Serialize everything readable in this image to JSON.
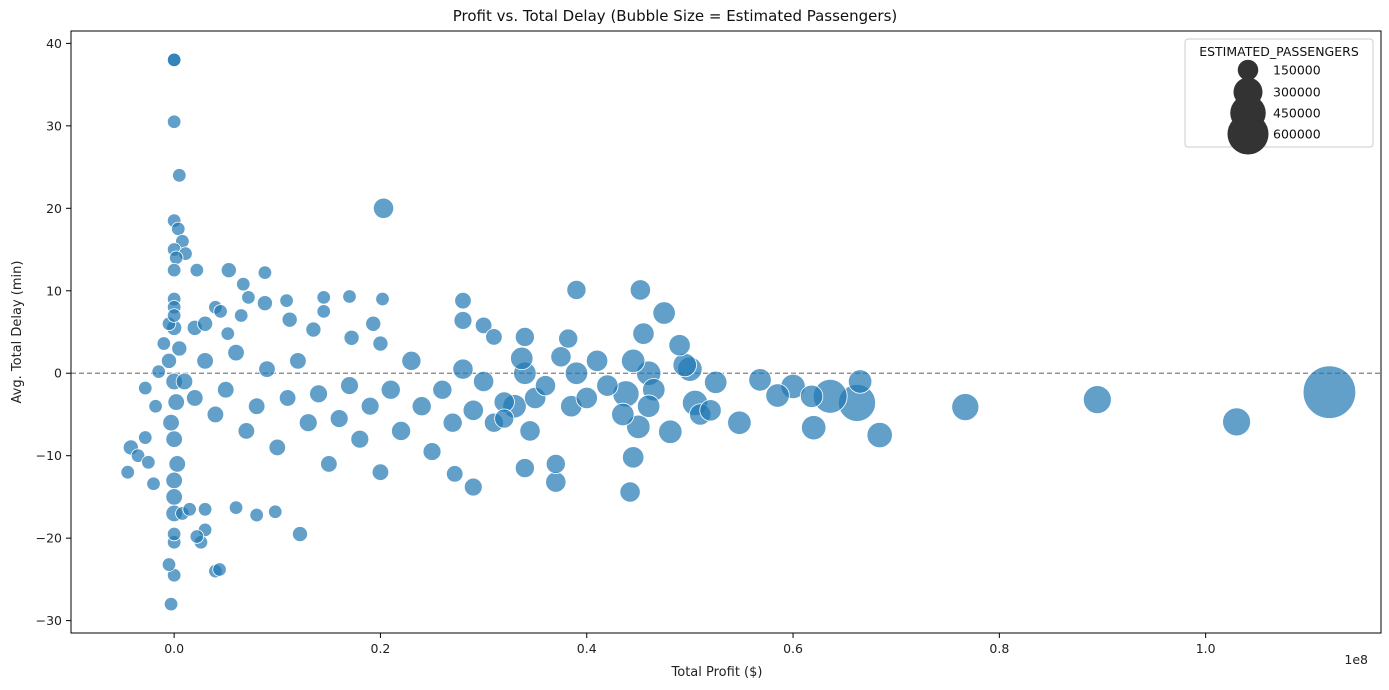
{
  "chart_data": {
    "type": "scatter",
    "title": "Profit vs. Total Delay (Bubble Size = Estimated Passengers)",
    "xlabel": "Total Profit ($)",
    "ylabel": "Avg. Total Delay (min)",
    "x_offset_label": "1e8",
    "xlim": [
      -0.1,
      1.17
    ],
    "ylim": [
      -31.5,
      41.5
    ],
    "x_ticks": [
      0.0,
      0.2,
      0.4,
      0.6,
      0.8,
      1.0
    ],
    "x_tick_labels": [
      "0.0",
      "0.2",
      "0.4",
      "0.6",
      "0.8",
      "1.0"
    ],
    "y_ticks": [
      -30,
      -20,
      -10,
      0,
      10,
      20,
      30,
      40
    ],
    "y_tick_labels": [
      "−30",
      "−20",
      "−10",
      "0",
      "10",
      "20",
      "30",
      "40"
    ],
    "reference_line": {
      "y": 0,
      "style": "dashed",
      "color": "#808080"
    },
    "grid": false,
    "point_color": "#1f77b4",
    "point_alpha": 0.7,
    "legend": {
      "title": "ESTIMATED_PASSENGERS",
      "placement": "top-right",
      "entries": [
        {
          "label": "150000",
          "size": 150000
        },
        {
          "label": "300000",
          "size": 300000
        },
        {
          "label": "450000",
          "size": 450000
        },
        {
          "label": "600000",
          "size": 600000
        }
      ],
      "marker_color": "#333333"
    },
    "size_range": [
      0,
      680000
    ],
    "points": [
      {
        "x": 0.0,
        "y": 38.0,
        "s": 40000
      },
      {
        "x": 0.0,
        "y": 38.0,
        "s": 40000
      },
      {
        "x": 0.0,
        "y": 30.5,
        "s": 40000
      },
      {
        "x": 0.005,
        "y": 24.0,
        "s": 40000
      },
      {
        "x": 0.0,
        "y": 18.5,
        "s": 40000
      },
      {
        "x": 0.004,
        "y": 17.5,
        "s": 40000
      },
      {
        "x": 0.008,
        "y": 16.0,
        "s": 40000
      },
      {
        "x": 0.0,
        "y": 15.0,
        "s": 40000
      },
      {
        "x": 0.011,
        "y": 14.5,
        "s": 40000
      },
      {
        "x": 0.002,
        "y": 14.0,
        "s": 40000
      },
      {
        "x": 0.0,
        "y": 12.5,
        "s": 40000
      },
      {
        "x": 0.022,
        "y": 12.5,
        "s": 40000
      },
      {
        "x": 0.053,
        "y": 12.5,
        "s": 50000
      },
      {
        "x": 0.088,
        "y": 12.2,
        "s": 40000
      },
      {
        "x": 0.203,
        "y": 20.0,
        "s": 90000
      },
      {
        "x": -0.003,
        "y": -28.0,
        "s": 40000
      },
      {
        "x": 0.0,
        "y": -24.5,
        "s": 40000
      },
      {
        "x": -0.005,
        "y": -23.2,
        "s": 40000
      },
      {
        "x": 0.04,
        "y": -24.0,
        "s": 40000
      },
      {
        "x": 0.044,
        "y": -23.8,
        "s": 40000
      },
      {
        "x": 0.0,
        "y": -20.5,
        "s": 40000
      },
      {
        "x": 0.0,
        "y": -19.5,
        "s": 40000
      },
      {
        "x": 0.026,
        "y": -20.5,
        "s": 40000
      },
      {
        "x": 0.122,
        "y": -19.5,
        "s": 50000
      },
      {
        "x": -0.045,
        "y": -12.0,
        "s": 40000
      },
      {
        "x": -0.042,
        "y": -9.0,
        "s": 50000
      },
      {
        "x": -0.035,
        "y": -10.0,
        "s": 40000
      },
      {
        "x": -0.028,
        "y": -7.8,
        "s": 40000
      },
      {
        "x": -0.025,
        "y": -10.8,
        "s": 40000
      },
      {
        "x": -0.02,
        "y": -13.4,
        "s": 40000
      },
      {
        "x": -0.018,
        "y": -4.0,
        "s": 40000
      },
      {
        "x": -0.015,
        "y": 0.2,
        "s": 40000
      },
      {
        "x": -0.028,
        "y": -1.8,
        "s": 40000
      },
      {
        "x": -0.01,
        "y": 3.6,
        "s": 40000
      },
      {
        "x": -0.005,
        "y": 6.0,
        "s": 40000
      },
      {
        "x": 0.0,
        "y": 9.0,
        "s": 40000
      },
      {
        "x": 0.0,
        "y": 8.0,
        "s": 40000
      },
      {
        "x": 0.0,
        "y": 7.0,
        "s": 40000
      },
      {
        "x": 0.0,
        "y": 5.5,
        "s": 50000
      },
      {
        "x": 0.005,
        "y": 3.0,
        "s": 50000
      },
      {
        "x": -0.005,
        "y": 1.5,
        "s": 50000
      },
      {
        "x": 0.0,
        "y": -1.0,
        "s": 60000
      },
      {
        "x": 0.002,
        "y": -3.5,
        "s": 60000
      },
      {
        "x": -0.003,
        "y": -6.0,
        "s": 60000
      },
      {
        "x": 0.0,
        "y": -8.0,
        "s": 60000
      },
      {
        "x": 0.003,
        "y": -11.0,
        "s": 60000
      },
      {
        "x": 0.0,
        "y": -13.0,
        "s": 60000
      },
      {
        "x": 0.0,
        "y": -15.0,
        "s": 60000
      },
      {
        "x": 0.0,
        "y": -17.0,
        "s": 60000
      },
      {
        "x": 0.008,
        "y": -17.0,
        "s": 40000
      },
      {
        "x": 0.015,
        "y": -16.5,
        "s": 40000
      },
      {
        "x": 0.03,
        "y": -16.5,
        "s": 40000
      },
      {
        "x": 0.03,
        "y": -19.0,
        "s": 40000
      },
      {
        "x": 0.022,
        "y": -19.8,
        "s": 40000
      },
      {
        "x": 0.06,
        "y": -16.3,
        "s": 40000
      },
      {
        "x": 0.08,
        "y": -17.2,
        "s": 40000
      },
      {
        "x": 0.098,
        "y": -16.8,
        "s": 40000
      },
      {
        "x": 0.02,
        "y": 5.5,
        "s": 50000
      },
      {
        "x": 0.03,
        "y": 6.0,
        "s": 50000
      },
      {
        "x": 0.04,
        "y": 8.0,
        "s": 40000
      },
      {
        "x": 0.045,
        "y": 7.5,
        "s": 40000
      },
      {
        "x": 0.052,
        "y": 4.8,
        "s": 40000
      },
      {
        "x": 0.065,
        "y": 7.0,
        "s": 40000
      },
      {
        "x": 0.067,
        "y": 10.8,
        "s": 40000
      },
      {
        "x": 0.072,
        "y": 9.2,
        "s": 40000
      },
      {
        "x": 0.088,
        "y": 8.5,
        "s": 50000
      },
      {
        "x": 0.109,
        "y": 8.8,
        "s": 40000
      },
      {
        "x": 0.112,
        "y": 6.5,
        "s": 50000
      },
      {
        "x": 0.135,
        "y": 5.3,
        "s": 50000
      },
      {
        "x": 0.145,
        "y": 9.2,
        "s": 40000
      },
      {
        "x": 0.145,
        "y": 7.5,
        "s": 40000
      },
      {
        "x": 0.17,
        "y": 9.3,
        "s": 40000
      },
      {
        "x": 0.193,
        "y": 6.0,
        "s": 50000
      },
      {
        "x": 0.172,
        "y": 4.3,
        "s": 50000
      },
      {
        "x": 0.202,
        "y": 9.0,
        "s": 40000
      },
      {
        "x": 0.2,
        "y": 3.6,
        "s": 50000
      },
      {
        "x": 0.01,
        "y": -1.0,
        "s": 60000
      },
      {
        "x": 0.02,
        "y": -3.0,
        "s": 60000
      },
      {
        "x": 0.03,
        "y": 1.5,
        "s": 60000
      },
      {
        "x": 0.04,
        "y": -5.0,
        "s": 60000
      },
      {
        "x": 0.05,
        "y": -2.0,
        "s": 60000
      },
      {
        "x": 0.06,
        "y": 2.5,
        "s": 60000
      },
      {
        "x": 0.07,
        "y": -7.0,
        "s": 60000
      },
      {
        "x": 0.08,
        "y": -4.0,
        "s": 60000
      },
      {
        "x": 0.09,
        "y": 0.5,
        "s": 60000
      },
      {
        "x": 0.1,
        "y": -9.0,
        "s": 60000
      },
      {
        "x": 0.11,
        "y": -3.0,
        "s": 60000
      },
      {
        "x": 0.12,
        "y": 1.5,
        "s": 60000
      },
      {
        "x": 0.13,
        "y": -6.0,
        "s": 70000
      },
      {
        "x": 0.14,
        "y": -2.5,
        "s": 70000
      },
      {
        "x": 0.15,
        "y": -11.0,
        "s": 60000
      },
      {
        "x": 0.16,
        "y": -5.5,
        "s": 70000
      },
      {
        "x": 0.17,
        "y": -1.5,
        "s": 70000
      },
      {
        "x": 0.18,
        "y": -8.0,
        "s": 70000
      },
      {
        "x": 0.19,
        "y": -4.0,
        "s": 70000
      },
      {
        "x": 0.2,
        "y": -12.0,
        "s": 60000
      },
      {
        "x": 0.21,
        "y": -2.0,
        "s": 80000
      },
      {
        "x": 0.22,
        "y": -7.0,
        "s": 80000
      },
      {
        "x": 0.23,
        "y": 1.5,
        "s": 80000
      },
      {
        "x": 0.24,
        "y": -4.0,
        "s": 80000
      },
      {
        "x": 0.25,
        "y": -9.5,
        "s": 70000
      },
      {
        "x": 0.26,
        "y": -2.0,
        "s": 80000
      },
      {
        "x": 0.27,
        "y": -6.0,
        "s": 80000
      },
      {
        "x": 0.28,
        "y": 0.5,
        "s": 90000
      },
      {
        "x": 0.29,
        "y": -4.5,
        "s": 90000
      },
      {
        "x": 0.3,
        "y": -1.0,
        "s": 90000
      },
      {
        "x": 0.31,
        "y": -6.0,
        "s": 80000
      },
      {
        "x": 0.32,
        "y": -3.5,
        "s": 90000
      },
      {
        "x": 0.33,
        "y": -4.0,
        "s": 120000
      },
      {
        "x": 0.34,
        "y": 0.0,
        "s": 110000
      },
      {
        "x": 0.345,
        "y": -7.0,
        "s": 90000
      },
      {
        "x": 0.35,
        "y": -3.0,
        "s": 100000
      },
      {
        "x": 0.36,
        "y": -1.5,
        "s": 90000
      },
      {
        "x": 0.37,
        "y": -11.0,
        "s": 80000
      },
      {
        "x": 0.375,
        "y": 2.0,
        "s": 90000
      },
      {
        "x": 0.385,
        "y": -4.0,
        "s": 100000
      },
      {
        "x": 0.39,
        "y": 0.0,
        "s": 110000
      },
      {
        "x": 0.4,
        "y": -3.0,
        "s": 100000
      },
      {
        "x": 0.41,
        "y": 1.5,
        "s": 100000
      },
      {
        "x": 0.42,
        "y": -1.5,
        "s": 100000
      },
      {
        "x": 0.435,
        "y": -5.0,
        "s": 110000
      },
      {
        "x": 0.438,
        "y": -2.5,
        "s": 150000
      },
      {
        "x": 0.445,
        "y": 1.5,
        "s": 120000
      },
      {
        "x": 0.45,
        "y": -6.5,
        "s": 120000
      },
      {
        "x": 0.455,
        "y": 4.8,
        "s": 100000
      },
      {
        "x": 0.46,
        "y": 0.0,
        "s": 130000
      },
      {
        "x": 0.465,
        "y": -2.0,
        "s": 110000
      },
      {
        "x": 0.46,
        "y": -4.0,
        "s": 110000
      },
      {
        "x": 0.272,
        "y": -12.2,
        "s": 60000
      },
      {
        "x": 0.29,
        "y": -13.8,
        "s": 70000
      },
      {
        "x": 0.32,
        "y": -5.5,
        "s": 80000
      },
      {
        "x": 0.34,
        "y": -11.5,
        "s": 80000
      },
      {
        "x": 0.37,
        "y": -13.2,
        "s": 90000
      },
      {
        "x": 0.442,
        "y": -14.4,
        "s": 90000
      },
      {
        "x": 0.445,
        "y": -10.2,
        "s": 100000
      },
      {
        "x": 0.39,
        "y": 10.1,
        "s": 80000
      },
      {
        "x": 0.452,
        "y": 10.1,
        "s": 90000
      },
      {
        "x": 0.28,
        "y": 8.8,
        "s": 60000
      },
      {
        "x": 0.28,
        "y": 6.4,
        "s": 70000
      },
      {
        "x": 0.3,
        "y": 5.8,
        "s": 60000
      },
      {
        "x": 0.31,
        "y": 4.4,
        "s": 60000
      },
      {
        "x": 0.34,
        "y": 4.4,
        "s": 80000
      },
      {
        "x": 0.382,
        "y": 4.2,
        "s": 80000
      },
      {
        "x": 0.337,
        "y": 1.8,
        "s": 110000
      },
      {
        "x": 0.475,
        "y": 7.3,
        "s": 110000
      },
      {
        "x": 0.49,
        "y": 3.4,
        "s": 100000
      },
      {
        "x": 0.495,
        "y": 1.0,
        "s": 120000
      },
      {
        "x": 0.5,
        "y": 0.5,
        "s": 130000
      },
      {
        "x": 0.481,
        "y": -7.1,
        "s": 120000
      },
      {
        "x": 0.505,
        "y": -3.6,
        "s": 140000
      },
      {
        "x": 0.51,
        "y": -5.0,
        "s": 100000
      },
      {
        "x": 0.52,
        "y": -4.5,
        "s": 100000
      },
      {
        "x": 0.525,
        "y": -1.1,
        "s": 110000
      },
      {
        "x": 0.548,
        "y": -6.0,
        "s": 120000
      },
      {
        "x": 0.568,
        "y": -0.8,
        "s": 110000
      },
      {
        "x": 0.585,
        "y": -2.7,
        "s": 120000
      },
      {
        "x": 0.6,
        "y": -1.6,
        "s": 130000
      },
      {
        "x": 0.618,
        "y": -2.8,
        "s": 110000
      },
      {
        "x": 0.62,
        "y": -6.6,
        "s": 130000
      },
      {
        "x": 0.636,
        "y": -2.8,
        "s": 250000
      },
      {
        "x": 0.662,
        "y": -3.6,
        "s": 300000
      },
      {
        "x": 0.665,
        "y": -1.0,
        "s": 120000
      },
      {
        "x": 0.684,
        "y": -7.5,
        "s": 140000
      },
      {
        "x": 0.767,
        "y": -4.1,
        "s": 160000
      },
      {
        "x": 0.895,
        "y": -3.2,
        "s": 170000
      },
      {
        "x": 1.03,
        "y": -5.9,
        "s": 170000
      },
      {
        "x": 1.12,
        "y": -2.3,
        "s": 600000
      }
    ]
  }
}
